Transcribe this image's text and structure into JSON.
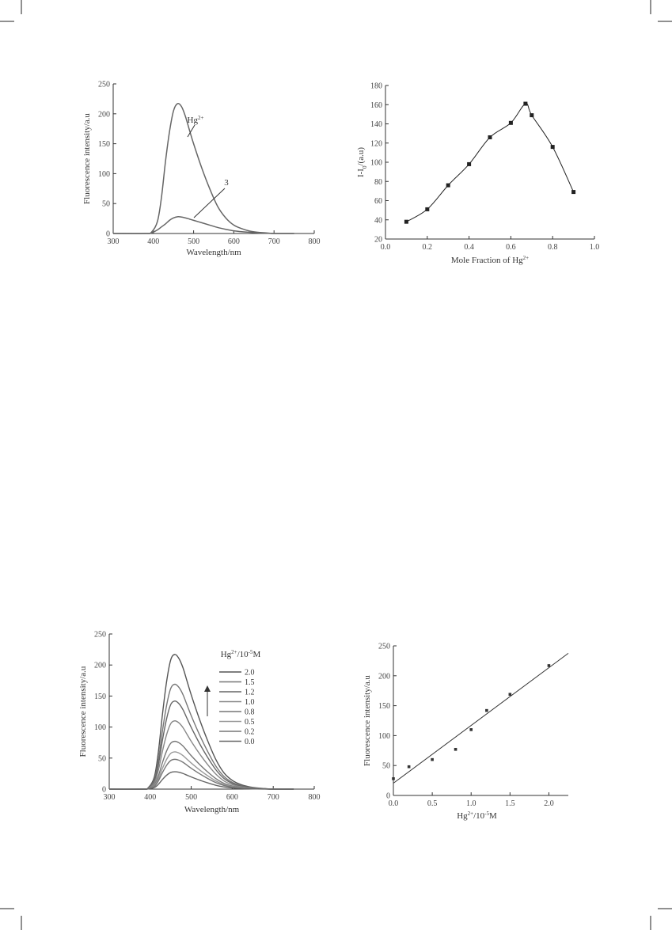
{
  "chart_data": [
    {
      "type": "line",
      "xlabel": "Wavelength/nm",
      "ylabel": "Fluorescence intensity/a.u",
      "xlim": [
        300,
        800
      ],
      "ylim": [
        0,
        250
      ],
      "xticks": [
        300,
        400,
        500,
        600,
        700,
        800
      ],
      "yticks": [
        0,
        50,
        100,
        150,
        200,
        250
      ],
      "annotations": [
        {
          "text": "Hg",
          "sup": "2+",
          "points_to_series": "Hg2+"
        },
        {
          "text": "3",
          "sup": "",
          "points_to_series": "3"
        }
      ],
      "series": [
        {
          "name": "Hg2+",
          "x": [
            300,
            380,
            395,
            410,
            420,
            430,
            440,
            450,
            460,
            470,
            480,
            490,
            500,
            520,
            540,
            560,
            580,
            600,
            620,
            640,
            660,
            680,
            700,
            750
          ],
          "y": [
            0,
            0,
            2,
            20,
            60,
            120,
            170,
            205,
            217,
            212,
            195,
            172,
            150,
            110,
            75,
            45,
            26,
            14,
            8,
            4,
            2,
            1,
            0,
            0
          ]
        },
        {
          "name": "3",
          "x": [
            300,
            380,
            395,
            410,
            420,
            430,
            440,
            450,
            460,
            470,
            480,
            490,
            500,
            520,
            540,
            560,
            580,
            600,
            620,
            640,
            660,
            680,
            700,
            750
          ],
          "y": [
            0,
            0,
            1,
            6,
            11,
            16,
            22,
            26,
            28,
            27.5,
            26,
            24,
            22,
            18,
            14,
            10,
            7,
            4.5,
            3,
            2,
            1,
            0.5,
            0,
            0
          ]
        }
      ]
    },
    {
      "type": "scatter",
      "xlabel": "Mole Fraction of Hg",
      "xlabel_sup": "2+",
      "ylabel": "I-I",
      "ylabel_sub": "0",
      "ylabel_tail": "/(a.u)",
      "xlim": [
        0.0,
        1.0
      ],
      "ylim": [
        20,
        180
      ],
      "xticks": [
        0.0,
        0.2,
        0.4,
        0.6,
        0.8,
        1.0
      ],
      "yticks": [
        20,
        40,
        60,
        80,
        100,
        120,
        140,
        160,
        180
      ],
      "x": [
        0.1,
        0.2,
        0.3,
        0.4,
        0.5,
        0.6,
        0.67,
        0.7,
        0.8,
        0.9
      ],
      "y": [
        38,
        51,
        76,
        98,
        126,
        141,
        161,
        149,
        116,
        69
      ]
    },
    {
      "type": "line",
      "xlabel": "Wavelength/nm",
      "ylabel": "Fluorescence intensity/a.u",
      "xlim": [
        300,
        800
      ],
      "ylim": [
        0,
        250
      ],
      "xticks": [
        300,
        400,
        500,
        600,
        700,
        800
      ],
      "yticks": [
        0,
        50,
        100,
        150,
        200,
        250
      ],
      "legend_title": "Hg",
      "legend_title_sup": "2+",
      "legend_title_tail": "/10",
      "legend_title_sup2": "-5",
      "legend_title_end": "M",
      "legend_position": "top-right",
      "series": [
        {
          "name": "2.0",
          "peak": 217
        },
        {
          "name": "1.5",
          "peak": 169
        },
        {
          "name": "1.2",
          "peak": 142
        },
        {
          "name": "1.0",
          "peak": 110
        },
        {
          "name": "0.8",
          "peak": 77
        },
        {
          "name": "0.5",
          "peak": 60
        },
        {
          "name": "0.2",
          "peak": 48
        },
        {
          "name": "0.0",
          "peak": 28
        }
      ]
    },
    {
      "type": "scatter",
      "xlabel": "Hg",
      "xlabel_sup": "2+",
      "xlabel_tail": "/10",
      "xlabel_sup2": "-5",
      "xlabel_end": "M",
      "ylabel": "Fluorescence intensity/a.u",
      "xlim": [
        0.0,
        2.25
      ],
      "ylim": [
        0,
        250
      ],
      "xticks": [
        0.0,
        0.5,
        1.0,
        1.5,
        2.0
      ],
      "yticks": [
        0,
        50,
        100,
        150,
        200,
        250
      ],
      "x": [
        0.0,
        0.2,
        0.5,
        0.8,
        1.0,
        1.2,
        1.5,
        2.0
      ],
      "y": [
        28,
        48,
        60,
        77,
        110,
        142,
        169,
        217
      ],
      "fit_line": {
        "intercept": 20.5,
        "slope": 96.5
      }
    }
  ]
}
